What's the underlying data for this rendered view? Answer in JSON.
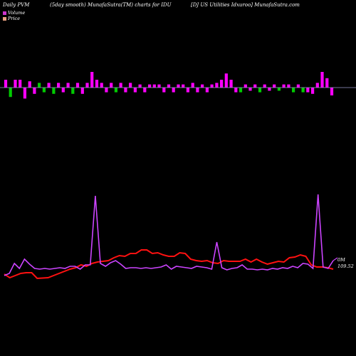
{
  "header": {
    "left": "Daily PVM",
    "middle": "(5day smooth) MunafaSutra(TM) charts for IDU",
    "right": "[DJ US Utilities Idxuroo] MunafaSutra.com"
  },
  "legend": {
    "volume_label": "Volume",
    "volume_color": "#cc33cc",
    "price_label": "Price",
    "price_color": "#e8a080"
  },
  "chart_data": {
    "type": "line",
    "colors": {
      "volume_bar_up": "#ff00ff",
      "volume_bar_down": "#00cc00",
      "price_line": "#ff1111",
      "volume_line": "#cc44ff",
      "baseline": "#9999cc"
    },
    "volume_bars": [
      {
        "v": 0.5,
        "dir": "up"
      },
      {
        "v": -0.6,
        "dir": "down"
      },
      {
        "v": 0.5,
        "dir": "up"
      },
      {
        "v": 0.5,
        "dir": "up"
      },
      {
        "v": -0.7,
        "dir": "up"
      },
      {
        "v": 0.4,
        "dir": "up"
      },
      {
        "v": -0.4,
        "dir": "up"
      },
      {
        "v": 0.3,
        "dir": "down"
      },
      {
        "v": -0.3,
        "dir": "down"
      },
      {
        "v": 0.3,
        "dir": "up"
      },
      {
        "v": -0.4,
        "dir": "down"
      },
      {
        "v": 0.3,
        "dir": "up"
      },
      {
        "v": -0.3,
        "dir": "up"
      },
      {
        "v": 0.3,
        "dir": "up"
      },
      {
        "v": -0.4,
        "dir": "down"
      },
      {
        "v": 0.3,
        "dir": "up"
      },
      {
        "v": -0.4,
        "dir": "up"
      },
      {
        "v": 0.3,
        "dir": "up"
      },
      {
        "v": 1.0,
        "dir": "up"
      },
      {
        "v": 0.5,
        "dir": "up"
      },
      {
        "v": 0.3,
        "dir": "up"
      },
      {
        "v": -0.3,
        "dir": "up"
      },
      {
        "v": 0.3,
        "dir": "up"
      },
      {
        "v": -0.3,
        "dir": "down"
      },
      {
        "v": 0.3,
        "dir": "up"
      },
      {
        "v": -0.3,
        "dir": "up"
      },
      {
        "v": 0.3,
        "dir": "up"
      },
      {
        "v": -0.3,
        "dir": "up"
      },
      {
        "v": 0.2,
        "dir": "up"
      },
      {
        "v": -0.3,
        "dir": "up"
      },
      {
        "v": 0.2,
        "dir": "up"
      },
      {
        "v": 0.2,
        "dir": "up"
      },
      {
        "v": 0.2,
        "dir": "up"
      },
      {
        "v": -0.3,
        "dir": "up"
      },
      {
        "v": 0.2,
        "dir": "up"
      },
      {
        "v": -0.3,
        "dir": "up"
      },
      {
        "v": 0.2,
        "dir": "up"
      },
      {
        "v": 0.2,
        "dir": "up"
      },
      {
        "v": -0.3,
        "dir": "up"
      },
      {
        "v": 0.3,
        "dir": "up"
      },
      {
        "v": -0.3,
        "dir": "up"
      },
      {
        "v": 0.2,
        "dir": "up"
      },
      {
        "v": -0.3,
        "dir": "up"
      },
      {
        "v": 0.2,
        "dir": "up"
      },
      {
        "v": 0.3,
        "dir": "up"
      },
      {
        "v": 0.5,
        "dir": "up"
      },
      {
        "v": 0.9,
        "dir": "up"
      },
      {
        "v": 0.5,
        "dir": "up"
      },
      {
        "v": -0.3,
        "dir": "up"
      },
      {
        "v": -0.3,
        "dir": "down"
      },
      {
        "v": 0.2,
        "dir": "up"
      },
      {
        "v": -0.2,
        "dir": "up"
      },
      {
        "v": 0.2,
        "dir": "up"
      },
      {
        "v": -0.3,
        "dir": "down"
      },
      {
        "v": 0.2,
        "dir": "up"
      },
      {
        "v": -0.2,
        "dir": "up"
      },
      {
        "v": 0.2,
        "dir": "up"
      },
      {
        "v": -0.2,
        "dir": "down"
      },
      {
        "v": 0.2,
        "dir": "up"
      },
      {
        "v": 0.2,
        "dir": "up"
      },
      {
        "v": -0.3,
        "dir": "down"
      },
      {
        "v": 0.2,
        "dir": "up"
      },
      {
        "v": -0.3,
        "dir": "down"
      },
      {
        "v": -0.3,
        "dir": "up"
      },
      {
        "v": -0.4,
        "dir": "up"
      },
      {
        "v": 0.3,
        "dir": "up"
      },
      {
        "v": 1.0,
        "dir": "up"
      },
      {
        "v": 0.6,
        "dir": "up"
      },
      {
        "v": -0.5,
        "dir": "up"
      }
    ],
    "series": [
      {
        "key": "price",
        "values": [
          45.0,
          40.0,
          43.0,
          46.0,
          47.0,
          47.0,
          39.0,
          39.5,
          40.0,
          43.0,
          46.0,
          49.0,
          52.0,
          54.0,
          58.0,
          56.0,
          60.0,
          62.0,
          63.0,
          64.0,
          68.0,
          71.0,
          70.0,
          74.0,
          74.0,
          79.0,
          79.0,
          74.0,
          75.0,
          72.0,
          70.0,
          70.0,
          75.0,
          74.0,
          66.0,
          64.0,
          63.0,
          64.0,
          61.0,
          60.0,
          64.0,
          63.0,
          63.0,
          63.0,
          66.0,
          62.0,
          66.0,
          62.0,
          59.0,
          61.0,
          63.0,
          62.0,
          68.0,
          69.0,
          72.0,
          70.0,
          58.0,
          55.0,
          55.0,
          54.0,
          52.0
        ]
      },
      {
        "key": "volume",
        "values": [
          43.0,
          46.0,
          60.0,
          53.0,
          66.0,
          59.0,
          53.0,
          52.0,
          53.0,
          52.0,
          53.0,
          54.0,
          53.0,
          56.0,
          56.0,
          52.0,
          58.0,
          58.0,
          155.0,
          60.0,
          56.0,
          61.0,
          64.0,
          59.0,
          53.0,
          54.0,
          54.0,
          53.0,
          54.0,
          53.0,
          54.0,
          55.0,
          58.0,
          52.0,
          56.0,
          55.0,
          54.0,
          53.0,
          56.0,
          55.0,
          54.0,
          52.0,
          90.0,
          54.0,
          51.0,
          53.0,
          54.0,
          58.0,
          52.0,
          52.0,
          51.0,
          52.0,
          51.0,
          53.0,
          52.0,
          54.0,
          53.0,
          56.0,
          54.0,
          60.0,
          59.0,
          53.0,
          157.0,
          55.0,
          53.0,
          64.0
        ]
      }
    ],
    "end_labels": {
      "volume": "0M",
      "price": "109.52"
    }
  }
}
